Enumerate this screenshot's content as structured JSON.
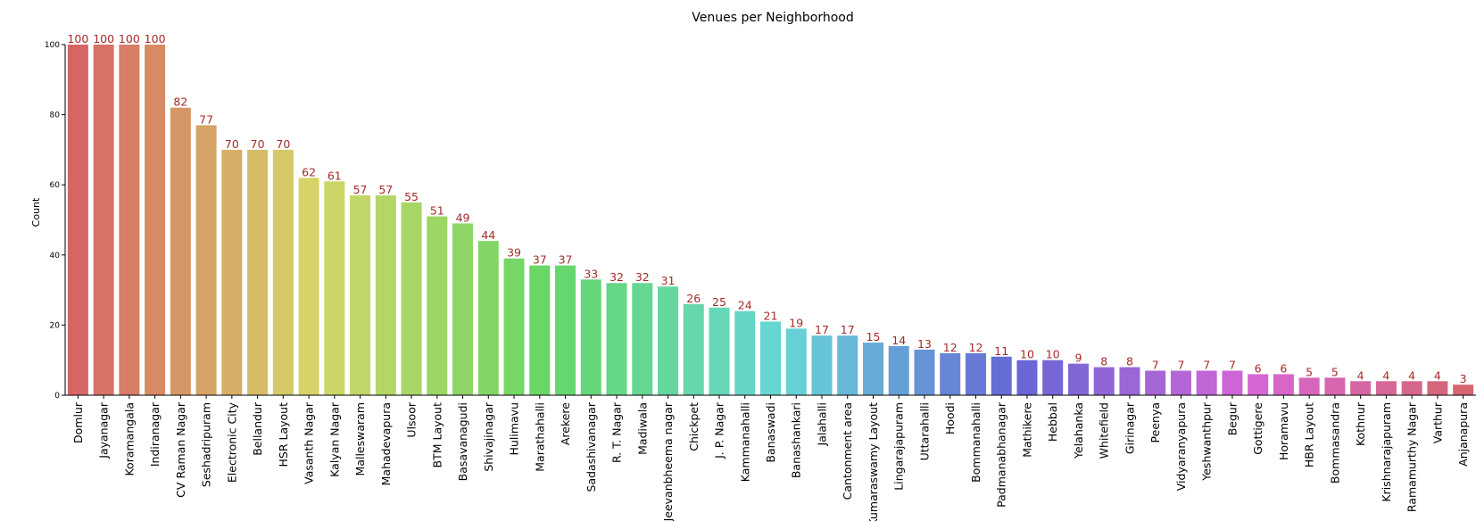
{
  "chart_data": {
    "type": "bar",
    "title": "Venues per Neighborhood",
    "xlabel": "",
    "ylabel": "Count",
    "ylim": [
      0,
      100
    ],
    "yticks": [
      0,
      20,
      40,
      60,
      80,
      100
    ],
    "grid": false,
    "value_label_color": "#a52a2a",
    "categories": [
      "Domlur",
      "Jayanagar",
      "Koramangala",
      "Indiranagar",
      "CV Raman Nagar",
      "Seshadripuram",
      "Electronic City",
      "Bellandur",
      "HSR Layout",
      "Vasanth Nagar",
      "Kalyan Nagar",
      "Malleswaram",
      "Mahadevapura",
      "Ulsoor",
      "BTM Layout",
      "Basavanagudi",
      "Shivajinagar",
      "Hulimavu",
      "Marathahalli",
      "Arekere",
      "Sadashivanagar",
      "R. T. Nagar",
      "Madiwala",
      "Jeevanbheema nagar",
      "Chickpet",
      "J. P. Nagar",
      "Kammanahalli",
      "Banaswadi",
      "Banashankari",
      "Jalahalli",
      "Cantonment area",
      "Kumaraswamy Layout",
      "Lingarajapuram",
      "Uttarahalli",
      "Hoodi",
      "Bommanahalli",
      "Padmanabhanagar",
      "Mathikere",
      "Hebbal",
      "Yelahanka",
      "Whitefield",
      "Girinagar",
      "Peenya",
      "Vidyaranyapura",
      "Yeshwanthpur",
      "Begur",
      "Gottigere",
      "Horamavu",
      "HBR Layout",
      "Bommasandra",
      "Kothnur",
      "Krishnarajapuram",
      "Ramamurthy Nagar",
      "Varthur",
      "Anjanapura"
    ],
    "values": [
      100,
      100,
      100,
      100,
      82,
      77,
      70,
      70,
      70,
      62,
      61,
      57,
      57,
      55,
      51,
      49,
      44,
      39,
      37,
      37,
      33,
      32,
      32,
      31,
      26,
      25,
      24,
      21,
      19,
      17,
      17,
      15,
      14,
      13,
      12,
      12,
      11,
      10,
      10,
      9,
      8,
      8,
      7,
      7,
      7,
      7,
      6,
      6,
      5,
      5,
      4,
      4,
      4,
      4,
      3
    ]
  }
}
